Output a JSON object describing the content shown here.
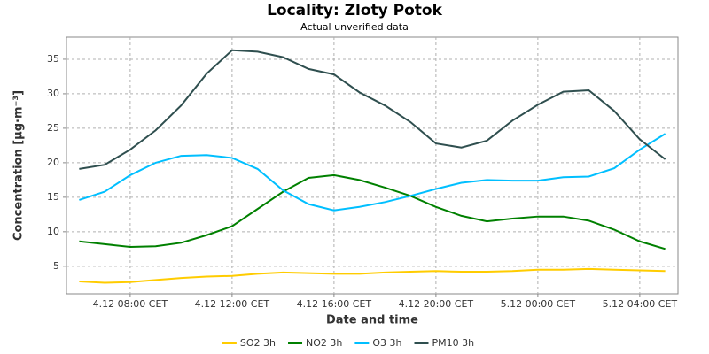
{
  "chart_data": {
    "type": "line",
    "title": "Locality: Zloty Potok",
    "subtitle": "Actual unverified data",
    "x_label": "Date and time",
    "y_label": "Concentration [µg·m⁻³]",
    "categories": [
      null,
      null,
      "4.12 08:00 CET",
      null,
      null,
      null,
      "4.12 12:00 CET",
      null,
      null,
      null,
      "4.12 16:00 CET",
      null,
      null,
      null,
      "4.12 20:00 CET",
      null,
      null,
      null,
      "5.12 00:00 CET",
      null,
      null,
      null,
      "5.12 04:00 CET",
      null
    ],
    "ylim": [
      1,
      38.2
    ],
    "yticks": [
      5,
      10,
      15,
      20,
      25,
      30,
      35
    ],
    "grid": true,
    "legend": "bottom",
    "series": [
      {
        "name": "SO2 3h",
        "color": "#ffcc00",
        "values": [
          2.8,
          2.6,
          2.7,
          3.0,
          3.3,
          3.5,
          3.6,
          3.9,
          4.1,
          4.0,
          3.9,
          3.9,
          4.1,
          4.2,
          4.3,
          4.2,
          4.2,
          4.3,
          4.5,
          4.5,
          4.6,
          4.5,
          4.4,
          4.3
        ]
      },
      {
        "name": "NO2 3h",
        "color": "#008000",
        "values": [
          8.6,
          8.2,
          7.8,
          7.9,
          8.4,
          9.5,
          10.8,
          13.3,
          15.8,
          17.8,
          18.2,
          17.5,
          16.4,
          15.2,
          13.6,
          12.3,
          11.5,
          11.9,
          12.2,
          12.2,
          11.6,
          10.3,
          8.6,
          7.5
        ]
      },
      {
        "name": "O3 3h",
        "color": "#00bfff",
        "values": [
          14.6,
          15.8,
          18.2,
          20.0,
          21.0,
          21.1,
          20.7,
          19.1,
          16.0,
          14.0,
          13.1,
          13.6,
          14.3,
          15.2,
          16.2,
          17.1,
          17.5,
          17.4,
          17.4,
          17.9,
          18.0,
          19.2,
          21.9,
          24.2
        ]
      },
      {
        "name": "PM10 3h",
        "color": "#2f4f4f",
        "values": [
          19.1,
          19.7,
          21.9,
          24.7,
          28.3,
          32.9,
          36.3,
          36.1,
          35.3,
          33.6,
          32.8,
          30.2,
          28.3,
          25.9,
          22.8,
          22.2,
          23.2,
          26.1,
          28.4,
          30.3,
          30.5,
          27.5,
          23.4,
          20.5
        ]
      }
    ]
  }
}
